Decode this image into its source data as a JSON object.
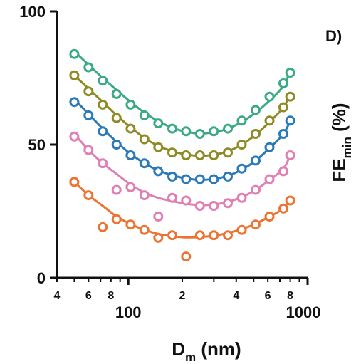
{
  "chart_data": {
    "type": "scatter",
    "panel_label": "D)",
    "xlabel": {
      "main": "D",
      "sub": "m",
      "unit": " (nm)"
    },
    "ylabel": {
      "main": "FE",
      "sub": "min",
      "unit": " (%)"
    },
    "x_scale": "log",
    "xlim": [
      40,
      1000
    ],
    "ylim": [
      0,
      100
    ],
    "x_major_ticks": [
      {
        "value": 100,
        "label": "100"
      },
      {
        "value": 1000,
        "label": "1000"
      }
    ],
    "x_minor_ticks": [
      {
        "value": 40,
        "label": "4"
      },
      {
        "value": 60,
        "label": "6"
      },
      {
        "value": 80,
        "label": "8"
      },
      {
        "value": 200,
        "label": "2"
      },
      {
        "value": 400,
        "label": "4"
      },
      {
        "value": 600,
        "label": "6"
      },
      {
        "value": 800,
        "label": "8"
      }
    ],
    "y_ticks": [
      {
        "value": 0,
        "label": "0"
      },
      {
        "value": 50,
        "label": "50"
      },
      {
        "value": 100,
        "label": "100"
      }
    ],
    "grid": false,
    "series": [
      {
        "color": "#3aaa85",
        "points": [
          [
            50,
            84
          ],
          [
            60,
            79
          ],
          [
            72,
            74
          ],
          [
            86,
            69
          ],
          [
            103,
            65
          ],
          [
            123,
            61
          ],
          [
            147,
            58
          ],
          [
            176,
            56
          ],
          [
            210,
            55
          ],
          [
            251,
            54
          ],
          [
            300,
            55
          ],
          [
            359,
            56
          ],
          [
            429,
            59
          ],
          [
            513,
            63
          ],
          [
            613,
            68
          ],
          [
            733,
            73
          ],
          [
            800,
            77
          ]
        ],
        "fit": [
          [
            50,
            85
          ],
          [
            60,
            80
          ],
          [
            72,
            75
          ],
          [
            86,
            70.5
          ],
          [
            103,
            66
          ],
          [
            123,
            62
          ],
          [
            147,
            58.8
          ],
          [
            176,
            56.3
          ],
          [
            210,
            54.8
          ],
          [
            251,
            54.2
          ],
          [
            300,
            54.6
          ],
          [
            359,
            56
          ],
          [
            429,
            58.5
          ],
          [
            513,
            62
          ],
          [
            613,
            66.5
          ],
          [
            733,
            72
          ],
          [
            800,
            78
          ]
        ]
      },
      {
        "color": "#8e8a26",
        "points": [
          [
            50,
            76
          ],
          [
            60,
            70
          ],
          [
            72,
            65
          ],
          [
            86,
            60
          ],
          [
            103,
            56
          ],
          [
            123,
            52
          ],
          [
            147,
            49
          ],
          [
            176,
            47
          ],
          [
            210,
            46
          ],
          [
            251,
            46
          ],
          [
            300,
            46
          ],
          [
            359,
            47
          ],
          [
            429,
            50
          ],
          [
            513,
            54
          ],
          [
            613,
            59
          ],
          [
            733,
            64
          ],
          [
            800,
            68
          ]
        ],
        "fit": [
          [
            50,
            76
          ],
          [
            60,
            71
          ],
          [
            72,
            66
          ],
          [
            86,
            61
          ],
          [
            103,
            56.5
          ],
          [
            123,
            52.5
          ],
          [
            147,
            49.5
          ],
          [
            176,
            47.5
          ],
          [
            210,
            46.3
          ],
          [
            251,
            45.8
          ],
          [
            300,
            46.2
          ],
          [
            359,
            47.5
          ],
          [
            429,
            50
          ],
          [
            513,
            53.7
          ],
          [
            613,
            58.5
          ],
          [
            733,
            64
          ],
          [
            800,
            69
          ]
        ]
      },
      {
        "color": "#2a7ab8",
        "points": [
          [
            50,
            66
          ],
          [
            60,
            61
          ],
          [
            72,
            55
          ],
          [
            86,
            50
          ],
          [
            103,
            46
          ],
          [
            123,
            43
          ],
          [
            147,
            40
          ],
          [
            176,
            38
          ],
          [
            210,
            37
          ],
          [
            251,
            37
          ],
          [
            300,
            37
          ],
          [
            359,
            38
          ],
          [
            429,
            41
          ],
          [
            513,
            44
          ],
          [
            613,
            49
          ],
          [
            733,
            54
          ],
          [
            800,
            59
          ]
        ],
        "fit": [
          [
            50,
            67
          ],
          [
            60,
            61.5
          ],
          [
            72,
            56
          ],
          [
            86,
            51
          ],
          [
            103,
            46.5
          ],
          [
            123,
            43
          ],
          [
            147,
            40.3
          ],
          [
            176,
            38.5
          ],
          [
            210,
            37.3
          ],
          [
            251,
            36.8
          ],
          [
            300,
            37.1
          ],
          [
            359,
            38.3
          ],
          [
            429,
            40.6
          ],
          [
            513,
            44
          ],
          [
            613,
            48.7
          ],
          [
            733,
            54
          ],
          [
            800,
            59
          ]
        ]
      },
      {
        "color": "#df7fb3",
        "points": [
          [
            50,
            53
          ],
          [
            60,
            48
          ],
          [
            72,
            43
          ],
          [
            86,
            33
          ],
          [
            103,
            34
          ],
          [
            123,
            31
          ],
          [
            147,
            23
          ],
          [
            176,
            30
          ],
          [
            210,
            29
          ],
          [
            251,
            27
          ],
          [
            300,
            27
          ],
          [
            359,
            28
          ],
          [
            429,
            30
          ],
          [
            513,
            33
          ],
          [
            613,
            37
          ],
          [
            733,
            40
          ],
          [
            800,
            46
          ]
        ],
        "fit": [
          [
            50,
            54
          ],
          [
            60,
            48
          ],
          [
            72,
            43
          ],
          [
            86,
            39
          ],
          [
            103,
            35
          ],
          [
            123,
            32
          ],
          [
            147,
            30
          ],
          [
            176,
            28.8
          ],
          [
            210,
            27.8
          ],
          [
            251,
            27.3
          ],
          [
            300,
            27.5
          ],
          [
            359,
            28.5
          ],
          [
            429,
            30.3
          ],
          [
            513,
            33
          ],
          [
            613,
            36.7
          ],
          [
            733,
            41
          ],
          [
            800,
            46
          ]
        ]
      },
      {
        "color": "#ec7433",
        "points": [
          [
            50,
            36
          ],
          [
            60,
            31
          ],
          [
            72,
            19
          ],
          [
            86,
            22
          ],
          [
            103,
            20
          ],
          [
            123,
            18
          ],
          [
            147,
            15
          ],
          [
            176,
            16
          ],
          [
            210,
            8
          ],
          [
            251,
            16
          ],
          [
            300,
            16
          ],
          [
            359,
            16
          ],
          [
            429,
            18
          ],
          [
            513,
            20
          ],
          [
            613,
            23
          ],
          [
            733,
            26
          ],
          [
            800,
            29
          ]
        ],
        "fit": [
          [
            50,
            36
          ],
          [
            60,
            31
          ],
          [
            72,
            27
          ],
          [
            86,
            23
          ],
          [
            103,
            20.2
          ],
          [
            123,
            18
          ],
          [
            147,
            16.5
          ],
          [
            176,
            15.6
          ],
          [
            210,
            15.2
          ],
          [
            251,
            15.3
          ],
          [
            300,
            15.8
          ],
          [
            359,
            16.8
          ],
          [
            429,
            18.3
          ],
          [
            513,
            20.3
          ],
          [
            613,
            23
          ],
          [
            733,
            26
          ],
          [
            800,
            30
          ]
        ]
      }
    ]
  }
}
